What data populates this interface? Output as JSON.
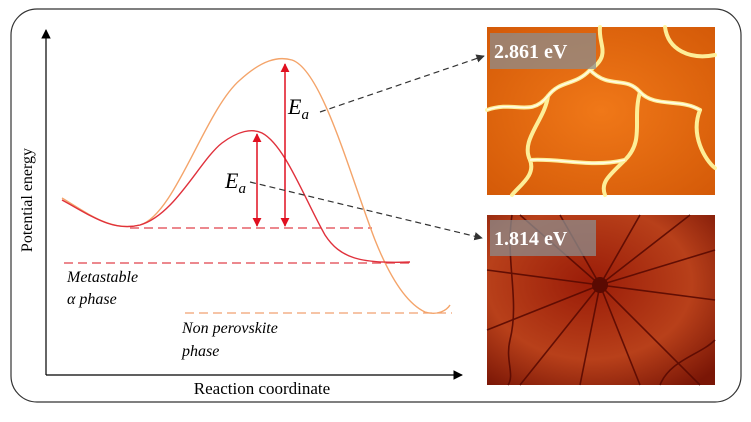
{
  "axes": {
    "ylabel": "Potential energy",
    "xlabel": "Reaction coordinate"
  },
  "labels": {
    "ea_top": "E",
    "ea_top_sub": "a",
    "ea_bottom": "E",
    "ea_bottom_sub": "a",
    "metastable_line1": "Metastable",
    "metastable_line2": "α phase",
    "nonperov_line1": "Non perovskite",
    "nonperov_line2": "phase"
  },
  "images": {
    "top_badge": "2.861 eV",
    "bottom_badge": "1.814 eV"
  },
  "colors": {
    "orange_curve": "#f4a46a",
    "red_curve": "#e0313c",
    "arrow_red": "#e01020",
    "dash_red": "#e0404a",
    "dash_orange": "#f0a070",
    "micrograph_top": "#e86a10",
    "micrograph_bottom": "#8a1a08"
  }
}
